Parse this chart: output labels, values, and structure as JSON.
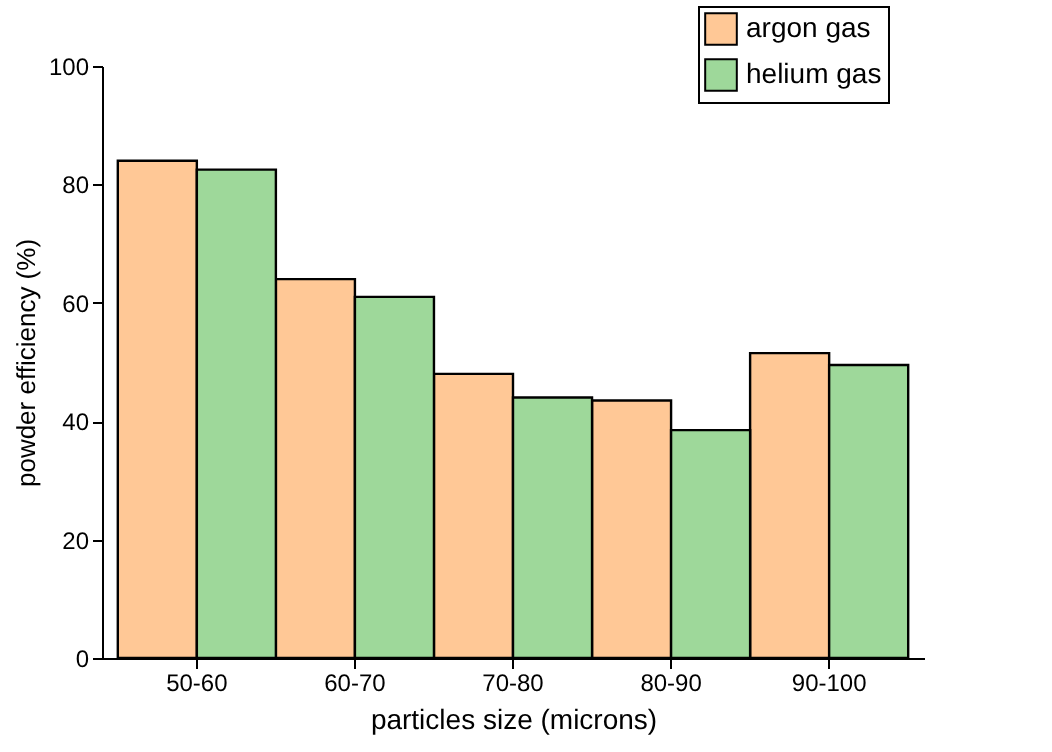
{
  "chart_data": {
    "type": "bar",
    "xlabel": "particles size (microns)",
    "ylabel": "powder efficiency (%)",
    "categories": [
      "50-60",
      "60-70",
      "70-80",
      "80-90",
      "90-100"
    ],
    "series": [
      {
        "name": "argon gas",
        "color": "#ffc896",
        "values": [
          84,
          64,
          48,
          43.5,
          51.5
        ]
      },
      {
        "name": "helium gas",
        "color": "#9ed89a",
        "values": [
          82.5,
          61,
          44,
          38.5,
          49.5
        ]
      }
    ],
    "ylim": [
      0,
      100
    ],
    "yticks": [
      0,
      20,
      40,
      60,
      80,
      100
    ],
    "grid": false,
    "legend": "top right"
  }
}
